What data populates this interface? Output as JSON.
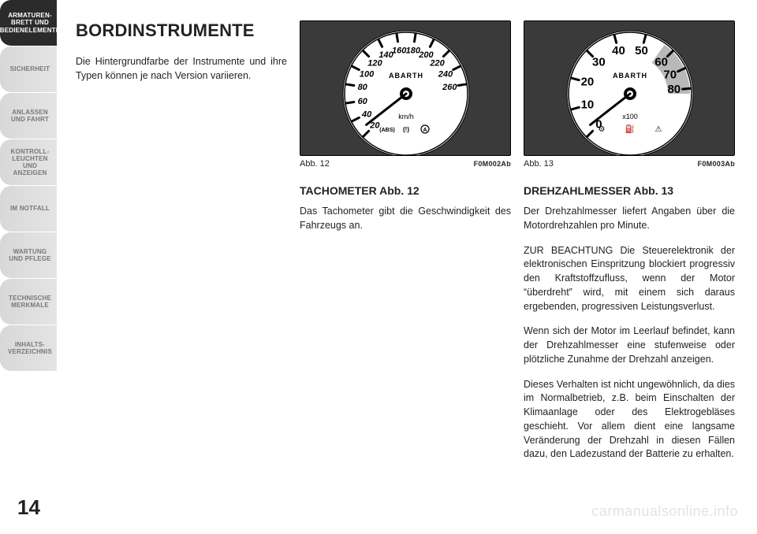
{
  "sidebar": {
    "tabs": [
      {
        "label": "ARMATUREN-\nBRETT UND\nBEDIENELEMENTE",
        "active": true
      },
      {
        "label": "SICHERHEIT",
        "active": false
      },
      {
        "label": "ANLASSEN\nUND FAHRT",
        "active": false
      },
      {
        "label": "KONTROLL-\nLEUCHTEN UND\nANZEIGEN",
        "active": false
      },
      {
        "label": "IM NOTFALL",
        "active": false
      },
      {
        "label": "WARTUNG UND\nPFLEGE",
        "active": false
      },
      {
        "label": "TECHNISCHE\nMERKMALE",
        "active": false
      },
      {
        "label": "INHALTS-\nVERZEICHNIS",
        "active": false
      }
    ]
  },
  "page_number": "14",
  "heading": "BORDINSTRUMENTE",
  "intro": "Die Hintergrundfarbe der Instrumente und ihre Typen können je nach Version variieren.",
  "col2": {
    "caption_left": "Abb. 12",
    "caption_right": "F0M002Ab",
    "subhead": "TACHOMETER Abb. 12",
    "body": "Das Tachometer gibt die Geschwindigkeit des Fahrzeugs an."
  },
  "col3": {
    "caption_left": "Abb. 13",
    "caption_right": "F0M003Ab",
    "subhead": "DREHZAHLMESSER Abb. 13",
    "p1": "Der Drehzahlmesser liefert Angaben über die Motordrehzahlen pro Minute.",
    "p2": "ZUR BEACHTUNG Die Steuerelektronik der elektronischen Einspritzung blockiert progressiv den Kraftstoffzufluss, wenn der Motor “überdreht” wird, mit einem sich daraus ergebenden, progressiven Leistungsverlust.",
    "p3": "Wenn sich der Motor im Leerlauf befindet, kann der Drehzahlmesser eine stufenweise oder plötzliche Zunahme der Drehzahl anzeigen.",
    "p4": "Dieses Verhalten ist nicht ungewöhnlich, da dies im Normalbetrieb, z.B. beim Einschalten der Klimaanlage oder des Elektrogebläses geschieht. Vor allem dient eine langsame Veränderung der Drehzahl in diesen Fällen dazu, den Ladezustand der Batterie zu erhalten."
  },
  "speedo": {
    "unit": "km/h",
    "brand": "ABARTH",
    "ticks": [
      {
        "v": "20",
        "a": -225
      },
      {
        "v": "40",
        "a": -207
      },
      {
        "v": "60",
        "a": -189
      },
      {
        "v": "80",
        "a": -171
      },
      {
        "v": "100",
        "a": -153
      },
      {
        "v": "120",
        "a": -135
      },
      {
        "v": "140",
        "a": -117
      },
      {
        "v": "160",
        "a": -99
      },
      {
        "v": "180",
        "a": -81
      },
      {
        "v": "200",
        "a": -63
      },
      {
        "v": "220",
        "a": -45
      },
      {
        "v": "240",
        "a": -27
      },
      {
        "v": "260",
        "a": -9
      }
    ],
    "icons": [
      "(ABS)",
      "(!)",
      "A"
    ]
  },
  "tacho": {
    "unit": "x100",
    "brand": "ABARTH",
    "ticks": [
      {
        "v": "0",
        "a": -225,
        "red": false
      },
      {
        "v": "10",
        "a": -195,
        "red": false
      },
      {
        "v": "20",
        "a": -165,
        "red": false
      },
      {
        "v": "30",
        "a": -135,
        "red": false
      },
      {
        "v": "40",
        "a": -105,
        "red": false
      },
      {
        "v": "50",
        "a": -75,
        "red": false
      },
      {
        "v": "60",
        "a": -45,
        "red": true
      },
      {
        "v": "70",
        "a": -25,
        "red": true
      },
      {
        "v": "80",
        "a": -5,
        "red": true
      }
    ],
    "red_start_angle": -55,
    "red_end_angle": 0
  },
  "watermark": "carmanualsonline.info",
  "style": {
    "page_bg": "#ffffff",
    "ink": "#222222",
    "tab_active_bg": "#2b2b2b",
    "tab_active_fg": "#ffffff",
    "tab_inactive_bg": "#e0e0e0",
    "tab_inactive_fg": "#777777",
    "gauge_bg": "#3a3a3a",
    "gauge_face": "#ffffff",
    "gauge_red": "#808080",
    "watermark_fg": "#e3e3e3"
  }
}
